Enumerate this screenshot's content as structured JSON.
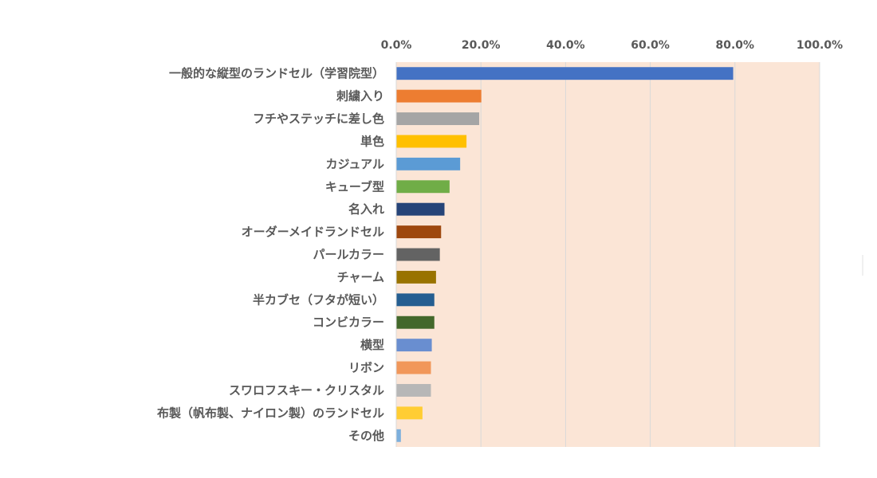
{
  "chart_data": {
    "type": "bar",
    "orientation": "horizontal",
    "title": "",
    "xlabel": "",
    "ylabel": "",
    "xlim": [
      0,
      100
    ],
    "x_ticks": [
      "0.0%",
      "20.0%",
      "40.0%",
      "60.0%",
      "80.0%",
      "100.0%"
    ],
    "x_axis_position": "top",
    "grid": true,
    "plot_background": "#FBE5D6",
    "categories": [
      "一般的な縦型のランドセル（学習院型）",
      "刺繍入り",
      "フチやステッチに差し色",
      "単色",
      "カジュアル",
      "キューブ型",
      "名入れ",
      "オーダーメイドランドセル",
      "パールカラー",
      "チャーム",
      "半カブセ（フタが短い）",
      "コンビカラー",
      "横型",
      "リボン",
      "スワロフスキー・クリスタル",
      "布製（帆布製、ナイロン製）のランドセル",
      "その他"
    ],
    "values": [
      79.5,
      20.0,
      19.5,
      16.5,
      15.0,
      12.5,
      11.3,
      10.5,
      10.2,
      9.3,
      8.9,
      8.9,
      8.3,
      8.1,
      8.1,
      6.1,
      1.0
    ],
    "colors": [
      "#4472C4",
      "#ED7D31",
      "#A5A5A5",
      "#FFC000",
      "#5B9BD5",
      "#70AD47",
      "#264478",
      "#9E480E",
      "#636363",
      "#997300",
      "#255E91",
      "#43682B",
      "#698ED0",
      "#F1975A",
      "#B7B7B7",
      "#FFCD33",
      "#7CAFDD"
    ]
  }
}
